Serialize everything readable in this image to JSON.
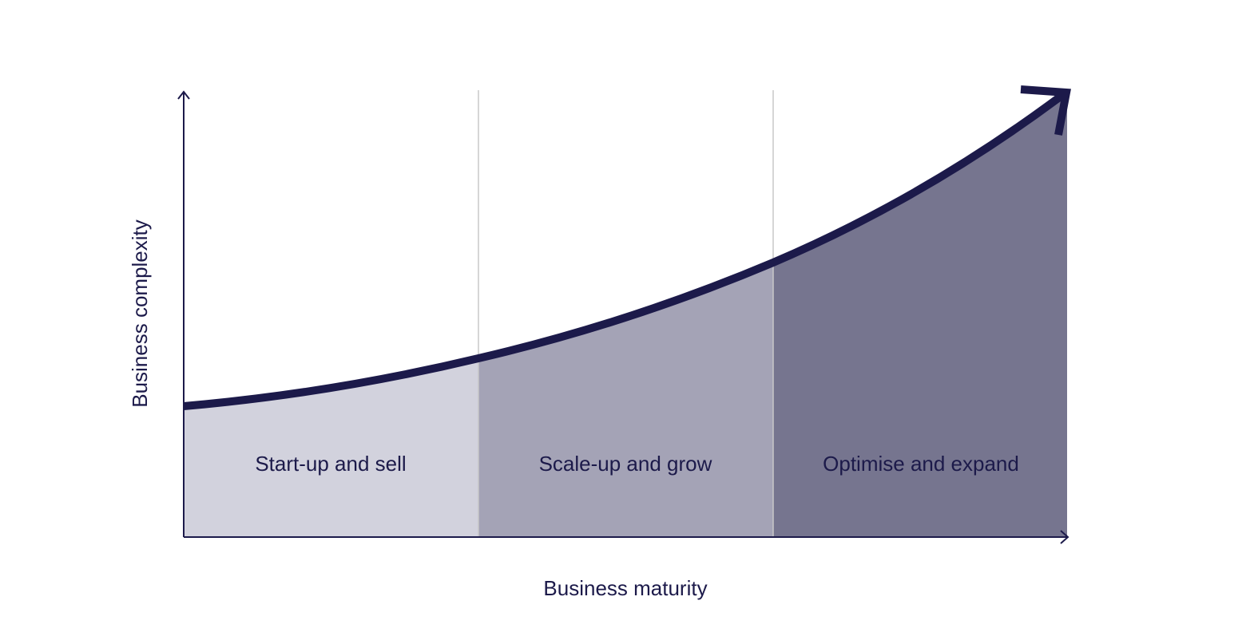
{
  "diagram": {
    "x_axis_label": "Business maturity",
    "y_axis_label": "Business complexity",
    "stages": [
      {
        "label": "Start-up and sell",
        "fill": "#d2d2dd"
      },
      {
        "label": "Scale-up and grow",
        "fill": "#a4a3b6"
      },
      {
        "label": "Optimise and expand",
        "fill": "#76758f"
      }
    ],
    "colors": {
      "curve": "#1c1a4a",
      "axis": "#1c1a4a",
      "divider": "#c8c8c8",
      "text": "#1c1a4a"
    }
  }
}
